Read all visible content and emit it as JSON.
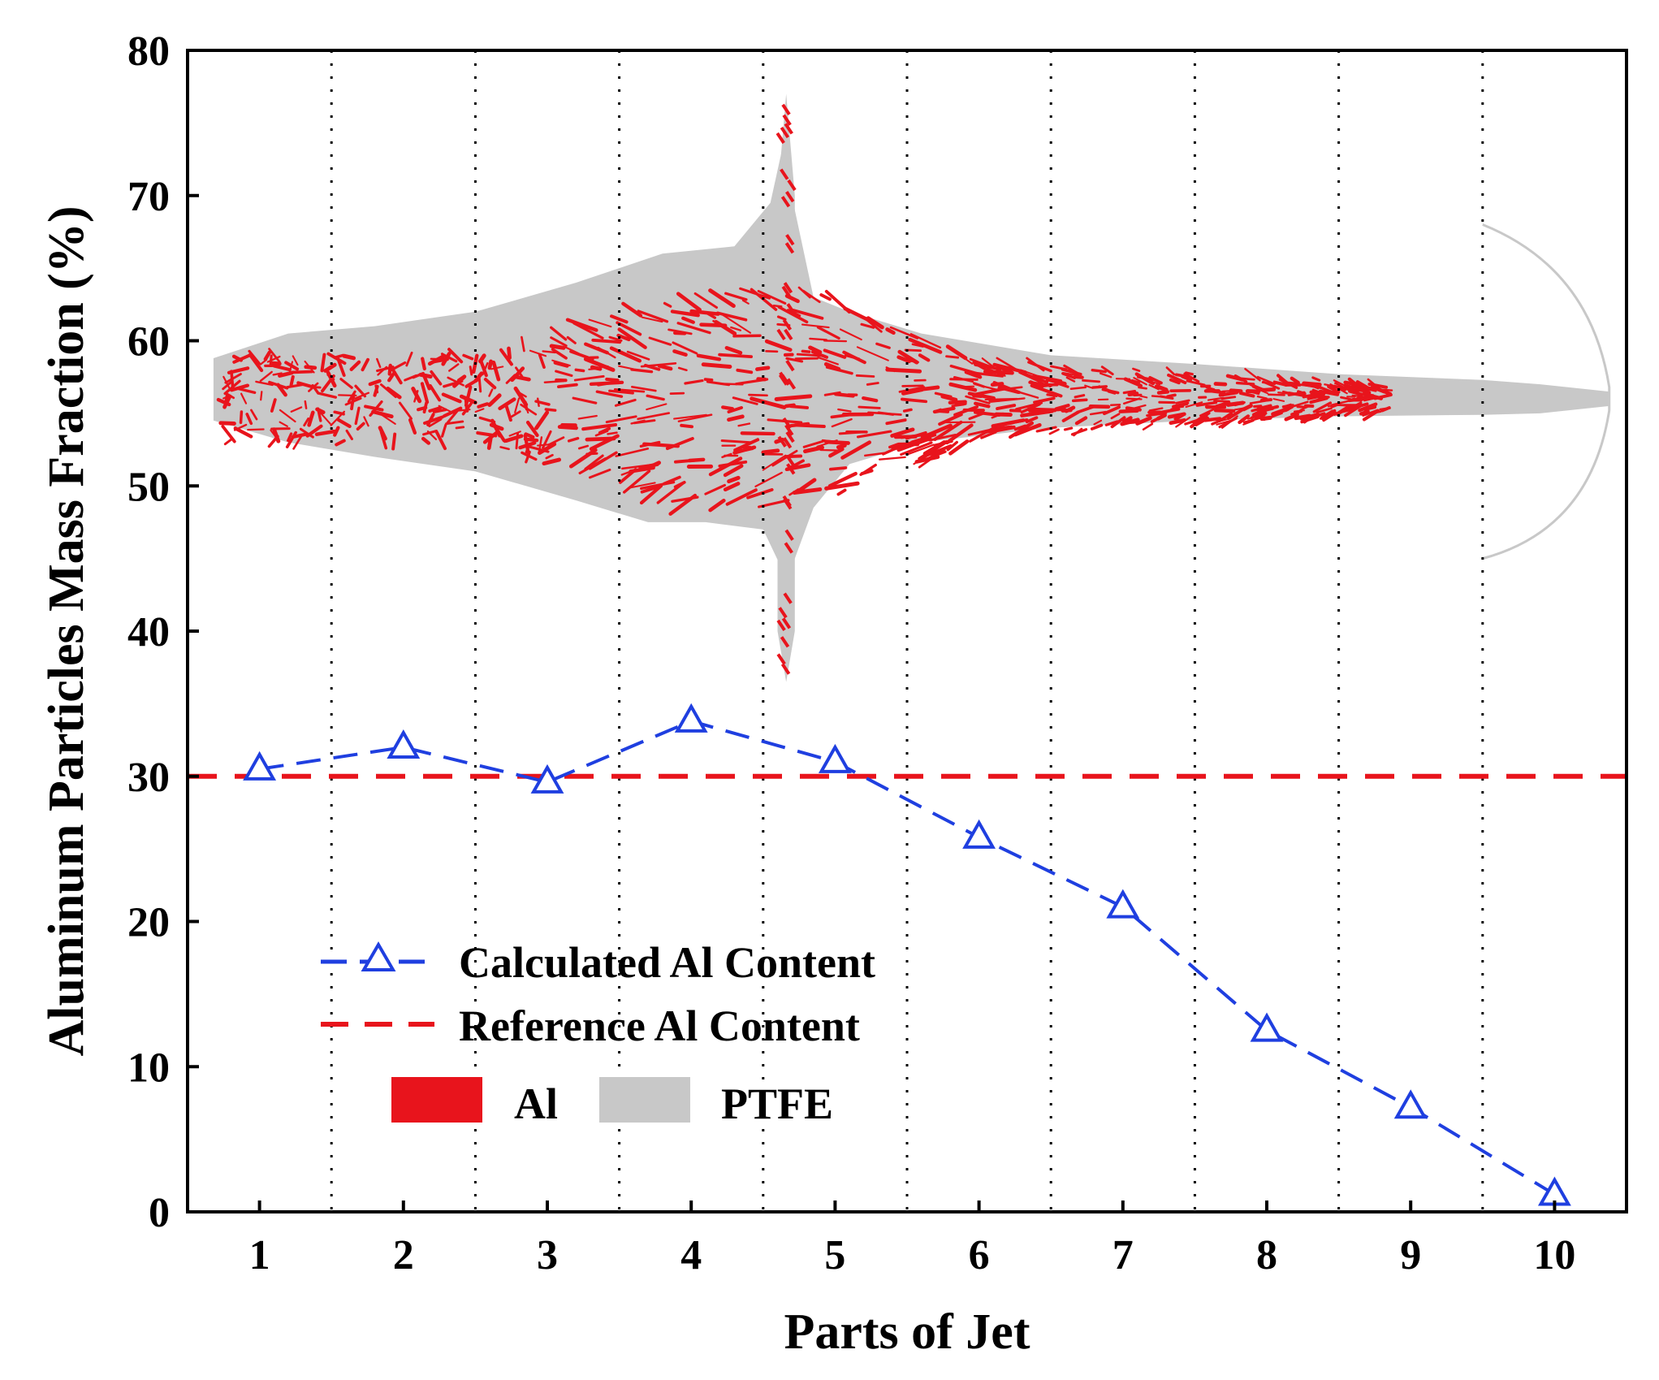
{
  "chart_data": {
    "type": "line",
    "title": "",
    "xlabel": "Parts of Jet",
    "ylabel": "Aluminum Particles Mass Fraction (%)",
    "xlim": [
      0.5,
      10.5
    ],
    "ylim": [
      0,
      80
    ],
    "x_ticks": [
      1,
      2,
      3,
      4,
      5,
      6,
      7,
      8,
      9,
      10
    ],
    "y_ticks": [
      0,
      10,
      20,
      30,
      40,
      50,
      60,
      70,
      80
    ],
    "separators": [
      1.5,
      2.5,
      3.5,
      4.5,
      5.5,
      6.5,
      7.5,
      8.5,
      9.5
    ],
    "series": [
      {
        "name": "Calculated Al Content",
        "x": [
          1,
          2,
          3,
          4,
          5,
          6,
          7,
          8,
          9,
          10
        ],
        "values": [
          30.5,
          32,
          29.6,
          33.8,
          31,
          25.8,
          21,
          12.5,
          7.2,
          1.2
        ],
        "color": "#1f3fe0",
        "style": "dashed",
        "marker": "open-triangle"
      },
      {
        "name": "Reference Al Content",
        "constant": 30,
        "color": "#e8141c",
        "style": "dashed"
      }
    ],
    "jet_overlay": {
      "description_colors": {
        "al": "#e8141c",
        "ptfe": "#c8c8c8"
      }
    },
    "legend": {
      "placement": "lower-left",
      "entries": [
        "Calculated Al Content",
        "Reference Al Content",
        "Al",
        "PTFE"
      ]
    },
    "grid": false
  }
}
